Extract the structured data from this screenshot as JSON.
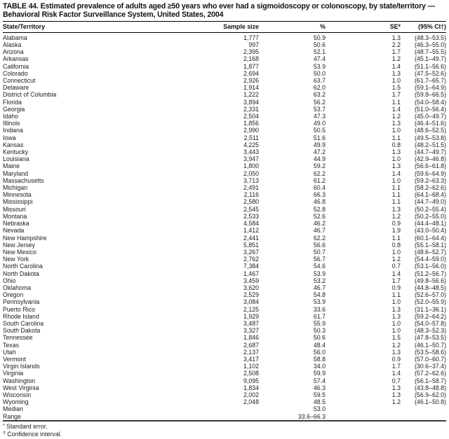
{
  "title": "TABLE 44. Estimated prevalence of adults aged ≥50 years who ever had a sigmoidoscopy or colonoscopy, by state/territory — Behavioral Risk Factor Surveillance System, United States, 2004",
  "colors": {
    "background": "#ffffff",
    "text": "#1c1c1c",
    "rule": "#000000"
  },
  "table": {
    "columns": [
      "State/Territory",
      "Sample size",
      "%",
      "SE*",
      "(95% CI†)"
    ],
    "rows": [
      {
        "state": "Alabama",
        "sample_size": "1,777",
        "percent": "50.9",
        "se": "1.3",
        "ci": "(48.3–53.5)"
      },
      {
        "state": "Alaska",
        "sample_size": "997",
        "percent": "50.6",
        "se": "2.2",
        "ci": "(46.3–55.0)"
      },
      {
        "state": "Arizona",
        "sample_size": "2,395",
        "percent": "52.1",
        "se": "1.7",
        "ci": "(48.7–55.5)"
      },
      {
        "state": "Arkansas",
        "sample_size": "2,168",
        "percent": "47.4",
        "se": "1.2",
        "ci": "(45.1–49.7)"
      },
      {
        "state": "California",
        "sample_size": "1,877",
        "percent": "53.9",
        "se": "1.4",
        "ci": "(51.1–56.6)"
      },
      {
        "state": "Colorado",
        "sample_size": "2,694",
        "percent": "50.0",
        "se": "1.3",
        "ci": "(47.5–52.6)"
      },
      {
        "state": "Connecticut",
        "sample_size": "2,926",
        "percent": "63.7",
        "se": "1.0",
        "ci": "(61.7–65.7)"
      },
      {
        "state": "Delaware",
        "sample_size": "1,914",
        "percent": "62.0",
        "se": "1.5",
        "ci": "(59.1–64.9)"
      },
      {
        "state": "District of Columbia",
        "sample_size": "1,222",
        "percent": "63.2",
        "se": "1.7",
        "ci": "(59.8–66.5)"
      },
      {
        "state": "Florida",
        "sample_size": "3,894",
        "percent": "56.2",
        "se": "1.1",
        "ci": "(54.0–58.4)"
      },
      {
        "state": "Georgia",
        "sample_size": "2,331",
        "percent": "53.7",
        "se": "1.4",
        "ci": "(51.0–56.4)"
      },
      {
        "state": "Idaho",
        "sample_size": "2,504",
        "percent": "47.3",
        "se": "1.2",
        "ci": "(45.0–49.7)"
      },
      {
        "state": "Illinois",
        "sample_size": "1,856",
        "percent": "49.0",
        "se": "1.3",
        "ci": "(46.4–51.6)"
      },
      {
        "state": "Indiana",
        "sample_size": "2,990",
        "percent": "50.5",
        "se": "1.0",
        "ci": "(48.6–52.5)"
      },
      {
        "state": "Iowa",
        "sample_size": "2,511",
        "percent": "51.6",
        "se": "1.1",
        "ci": "(49.5–53.8)"
      },
      {
        "state": "Kansas",
        "sample_size": "4,225",
        "percent": "49.9",
        "se": "0.8",
        "ci": "(48.2–51.5)"
      },
      {
        "state": "Kentucky",
        "sample_size": "3,443",
        "percent": "47.2",
        "se": "1.3",
        "ci": "(44.7–49.7)"
      },
      {
        "state": "Louisiana",
        "sample_size": "3,947",
        "percent": "44.9",
        "se": "1.0",
        "ci": "(42.9–46.8)"
      },
      {
        "state": "Maine",
        "sample_size": "1,800",
        "percent": "59.2",
        "se": "1.3",
        "ci": "(56.6–61.8)"
      },
      {
        "state": "Maryland",
        "sample_size": "2,050",
        "percent": "62.2",
        "se": "1.4",
        "ci": "(59.6–64.9)"
      },
      {
        "state": "Massachusetts",
        "sample_size": "3,713",
        "percent": "61.2",
        "se": "1.0",
        "ci": "(59.2–63.3)"
      },
      {
        "state": "Michigan",
        "sample_size": "2,491",
        "percent": "60.4",
        "se": "1.1",
        "ci": "(58.2–62.6)"
      },
      {
        "state": "Minnesota",
        "sample_size": "2,116",
        "percent": "66.3",
        "se": "1.1",
        "ci": "(64.1–68.4)"
      },
      {
        "state": "Mississippi",
        "sample_size": "2,580",
        "percent": "46.8",
        "se": "1.1",
        "ci": "(44.7–49.0)"
      },
      {
        "state": "Missouri",
        "sample_size": "2,545",
        "percent": "52.8",
        "se": "1.3",
        "ci": "(50.2–55.4)"
      },
      {
        "state": "Montana",
        "sample_size": "2,533",
        "percent": "52.6",
        "se": "1.2",
        "ci": "(50.2–55.0)"
      },
      {
        "state": "Nebraska",
        "sample_size": "4,584",
        "percent": "46.2",
        "se": "0.9",
        "ci": "(44.4–48.1)"
      },
      {
        "state": "Nevada",
        "sample_size": "1,412",
        "percent": "46.7",
        "se": "1.9",
        "ci": "(43.0–50.4)"
      },
      {
        "state": "New Hampshire",
        "sample_size": "2,441",
        "percent": "62.2",
        "se": "1.1",
        "ci": "(60.1–64.4)"
      },
      {
        "state": "New Jersey",
        "sample_size": "5,851",
        "percent": "56.6",
        "se": "0.8",
        "ci": "(55.1–58.1)"
      },
      {
        "state": "New Mexico",
        "sample_size": "3,267",
        "percent": "50.7",
        "se": "1.0",
        "ci": "(48.6–52.7)"
      },
      {
        "state": "New York",
        "sample_size": "2,762",
        "percent": "56.7",
        "se": "1.2",
        "ci": "(54.4–59.0)"
      },
      {
        "state": "North Carolina",
        "sample_size": "7,384",
        "percent": "54.6",
        "se": "0.7",
        "ci": "(53.1–56.0)"
      },
      {
        "state": "North Dakota",
        "sample_size": "1,467",
        "percent": "53.9",
        "se": "1.4",
        "ci": "(51.2–56.7)"
      },
      {
        "state": "Ohio",
        "sample_size": "3,459",
        "percent": "53.2",
        "se": "1.7",
        "ci": "(49.8–56.6)"
      },
      {
        "state": "Oklahoma",
        "sample_size": "3,620",
        "percent": "46.7",
        "se": "0.9",
        "ci": "(44.8–48.5)"
      },
      {
        "state": "Oregon",
        "sample_size": "2,529",
        "percent": "54.8",
        "se": "1.1",
        "ci": "(52.6–57.0)"
      },
      {
        "state": "Pennsylvania",
        "sample_size": "3,084",
        "percent": "53.9",
        "se": "1.0",
        "ci": "(52.0–55.9)"
      },
      {
        "state": "Puerto Rico",
        "sample_size": "2,125",
        "percent": "33.6",
        "se": "1.3",
        "ci": "(31.1–36.1)"
      },
      {
        "state": "Rhode Island",
        "sample_size": "1,929",
        "percent": "61.7",
        "se": "1.3",
        "ci": "(59.2–64.2)"
      },
      {
        "state": "South Carolina",
        "sample_size": "3,487",
        "percent": "55.9",
        "se": "1.0",
        "ci": "(54.0–57.8)"
      },
      {
        "state": "South Dakota",
        "sample_size": "3,327",
        "percent": "50.3",
        "se": "1.0",
        "ci": "(48.3–52.3)"
      },
      {
        "state": "Tennessee",
        "sample_size": "1,846",
        "percent": "50.6",
        "se": "1.5",
        "ci": "(47.8–53.5)"
      },
      {
        "state": "Texas",
        "sample_size": "2,687",
        "percent": "48.4",
        "se": "1.2",
        "ci": "(46.1–50.7)"
      },
      {
        "state": "Utah",
        "sample_size": "2,137",
        "percent": "56.0",
        "se": "1.3",
        "ci": "(53.5–58.6)"
      },
      {
        "state": "Vermont",
        "sample_size": "3,417",
        "percent": "58.8",
        "se": "0.9",
        "ci": "(57.0–60.7)"
      },
      {
        "state": "Virgin Islands",
        "sample_size": "1,102",
        "percent": "34.0",
        "se": "1.7",
        "ci": "(30.6–37.4)"
      },
      {
        "state": "Virginia",
        "sample_size": "2,508",
        "percent": "59.9",
        "se": "1.4",
        "ci": "(57.2–62.6)"
      },
      {
        "state": "Washington",
        "sample_size": "9,095",
        "percent": "57.4",
        "se": "0.7",
        "ci": "(56.1–58.7)"
      },
      {
        "state": "West Virginia",
        "sample_size": "1,834",
        "percent": "46.3",
        "se": "1.3",
        "ci": "(43.8–48.8)"
      },
      {
        "state": "Wisconsin",
        "sample_size": "2,002",
        "percent": "59.5",
        "se": "1.3",
        "ci": "(56.9–62.0)"
      },
      {
        "state": "Wyoming",
        "sample_size": "2,048",
        "percent": "48.5",
        "se": "1.2",
        "ci": "(46.1–50.8)"
      },
      {
        "state": "Median",
        "sample_size": "",
        "percent": "53.0",
        "se": "",
        "ci": ""
      },
      {
        "state": "Range",
        "sample_size": "",
        "percent": "33.6–66.3",
        "se": "",
        "ci": ""
      }
    ],
    "footnotes": [
      {
        "marker": "*",
        "text": "Standard error."
      },
      {
        "marker": "†",
        "text": "Confidence interval."
      }
    ]
  }
}
